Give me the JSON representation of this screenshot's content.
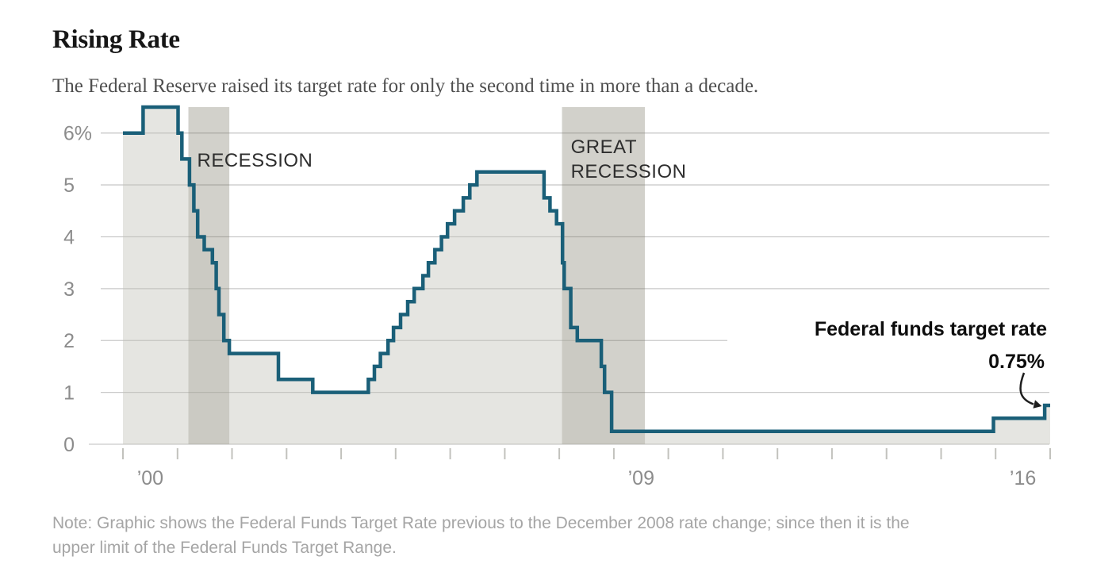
{
  "title": "Rising Rate",
  "subtitle": "The Federal Reserve raised its target rate for only the second time in more than a decade.",
  "note": {
    "line1": "Note: Graphic shows the Federal Funds Target Rate previous to the December 2008 rate change; since then it is the",
    "line2": "upper limit of the Federal Funds Target Range."
  },
  "chart_data": {
    "type": "area",
    "title": "Rising Rate",
    "xlabel": "",
    "ylabel": "Federal funds target rate (%)",
    "xlim": [
      2000,
      2017
    ],
    "ylim": [
      0,
      6.5
    ],
    "grid": true,
    "y_ticks": [
      0,
      1,
      2,
      3,
      4,
      5,
      6
    ],
    "y_tick_labels": [
      "0",
      "1",
      "2",
      "3",
      "4",
      "5",
      "6%"
    ],
    "x_axis_labels": [
      {
        "year": 2000,
        "label": "’00"
      },
      {
        "year": 2009,
        "label": "’09"
      },
      {
        "year": 2016,
        "label": "’16"
      }
    ],
    "series": [
      {
        "name": "Federal funds target rate",
        "step": "post",
        "unit": "percent",
        "end_x": 2017.0,
        "points": [
          [
            2000.0,
            6.0
          ],
          [
            2000.37,
            6.5
          ],
          [
            2001.01,
            6.0
          ],
          [
            2001.08,
            5.5
          ],
          [
            2001.22,
            5.0
          ],
          [
            2001.3,
            4.5
          ],
          [
            2001.37,
            4.0
          ],
          [
            2001.49,
            3.75
          ],
          [
            2001.64,
            3.5
          ],
          [
            2001.71,
            3.0
          ],
          [
            2001.76,
            2.5
          ],
          [
            2001.85,
            2.0
          ],
          [
            2001.95,
            1.75
          ],
          [
            2002.85,
            1.25
          ],
          [
            2003.48,
            1.0
          ],
          [
            2004.5,
            1.25
          ],
          [
            2004.61,
            1.5
          ],
          [
            2004.72,
            1.75
          ],
          [
            2004.86,
            2.0
          ],
          [
            2004.96,
            2.25
          ],
          [
            2005.09,
            2.5
          ],
          [
            2005.22,
            2.75
          ],
          [
            2005.34,
            3.0
          ],
          [
            2005.5,
            3.25
          ],
          [
            2005.6,
            3.5
          ],
          [
            2005.72,
            3.75
          ],
          [
            2005.84,
            4.0
          ],
          [
            2005.95,
            4.25
          ],
          [
            2006.08,
            4.5
          ],
          [
            2006.24,
            4.75
          ],
          [
            2006.36,
            5.0
          ],
          [
            2006.49,
            5.25
          ],
          [
            2007.72,
            4.75
          ],
          [
            2007.83,
            4.5
          ],
          [
            2007.95,
            4.25
          ],
          [
            2008.06,
            3.5
          ],
          [
            2008.09,
            3.0
          ],
          [
            2008.21,
            2.25
          ],
          [
            2008.33,
            2.0
          ],
          [
            2008.77,
            1.5
          ],
          [
            2008.83,
            1.0
          ],
          [
            2008.96,
            0.25
          ],
          [
            2015.96,
            0.5
          ],
          [
            2016.9,
            0.75
          ]
        ]
      }
    ],
    "bands": [
      {
        "label_lines": [
          "RECESSION"
        ],
        "from": 2001.2,
        "to": 2001.95
      },
      {
        "label_lines": [
          "GREAT",
          "RECESSION"
        ],
        "from": 2008.05,
        "to": 2009.57
      }
    ],
    "annotation": {
      "series_label": "Federal funds target rate",
      "value_label": "0.75%"
    },
    "legend_position": "none",
    "colors": {
      "line": "#1a5f78",
      "area_fill": "rgba(194,193,183,0.42)",
      "band_fill": "rgba(116,112,92,0.32)",
      "gridline": "#c9c9c9",
      "axis_tick": "#c2c2bd",
      "axis_text": "#8c8c8c",
      "band_text": "#2e2e2e",
      "annotation_text": "#0d0d0d",
      "arrow": "#1f1f1f"
    }
  }
}
